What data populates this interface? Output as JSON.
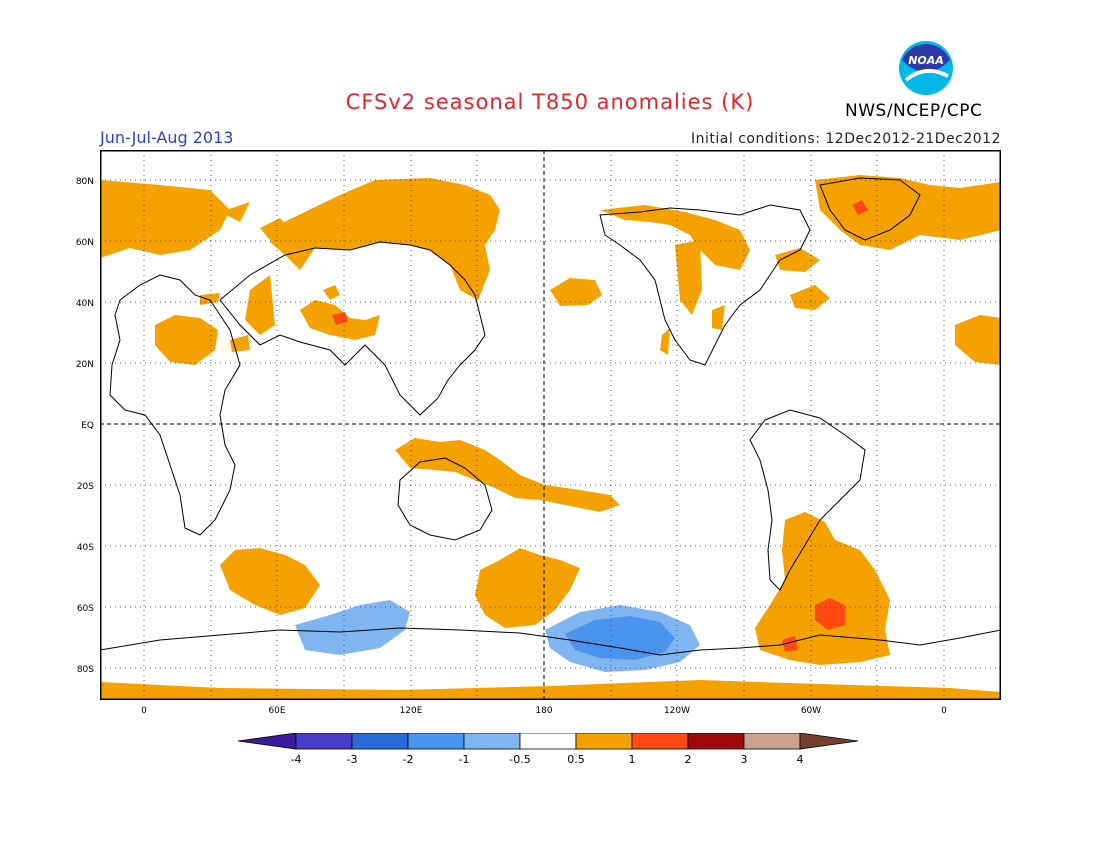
{
  "title": "CFSv2 seasonal T850 anomalies (K)",
  "agency": "NWS/NCEP/CPC",
  "period": "Jun-Jul-Aug 2013",
  "initial_conditions": "Initial conditions: 12Dec2012-21Dec2012",
  "logo_text": "NOAA",
  "map": {
    "lat_labels": [
      "80N",
      "60N",
      "40N",
      "20N",
      "EQ",
      "20S",
      "40S",
      "60S",
      "80S"
    ],
    "lon_labels": [
      "0",
      "60E",
      "120E",
      "180",
      "120W",
      "60W",
      "0"
    ],
    "grid": "dotted every 20° lat / 30° lon; dashed equator and 180° meridian"
  },
  "colorbar": {
    "labels": [
      "-4",
      "-3",
      "-2",
      "-1",
      "-0.5",
      "0.5",
      "1",
      "2",
      "3",
      "4"
    ],
    "colors": [
      "#3c1aa0",
      "#4a3ec9",
      "#2a69d8",
      "#4a94ee",
      "#7fb6f2",
      "#ffffff",
      "#f5a100",
      "#ff4a14",
      "#a00a0a",
      "#c9a392",
      "#754030"
    ]
  },
  "colors": {
    "title": "#e8242a",
    "period": "#2f3fd6",
    "warm": "#f5a100",
    "hot": "#ff4a14",
    "cool": "#7fb6f2",
    "cold": "#4a94ee"
  }
}
